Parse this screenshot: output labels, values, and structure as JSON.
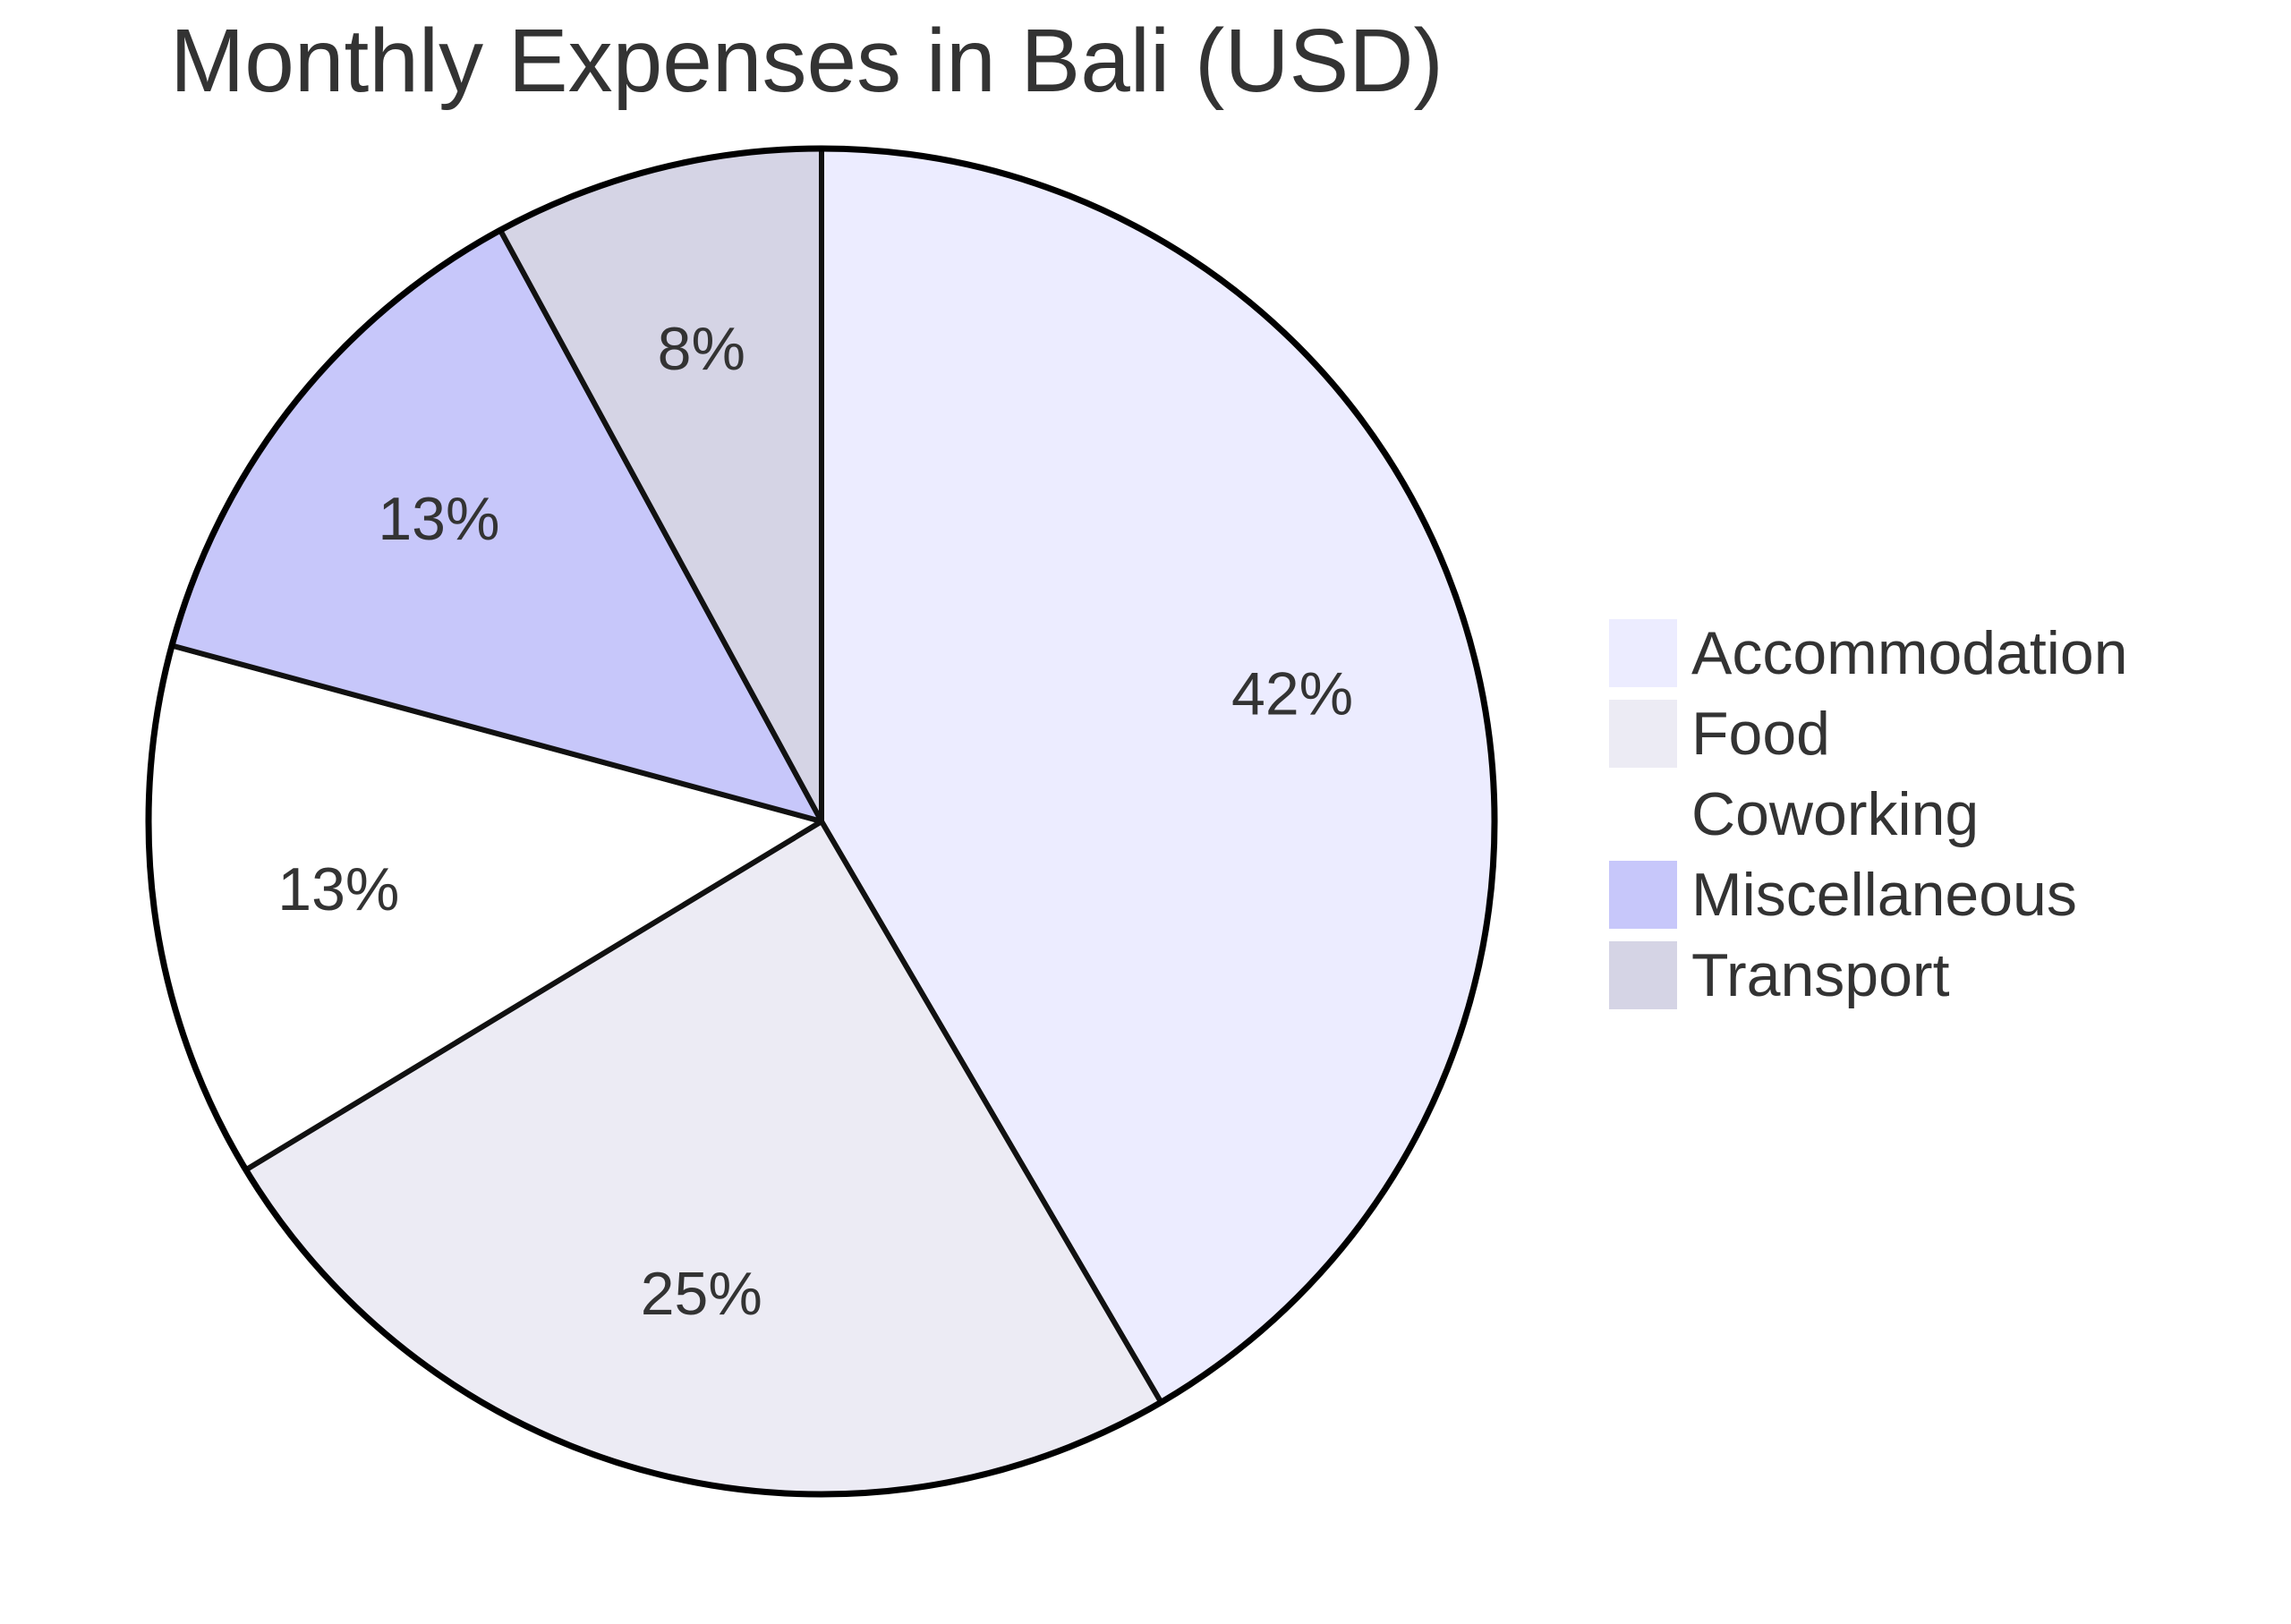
{
  "chart_data": {
    "type": "pie",
    "title": "Monthly Expenses in Bali (USD)",
    "start_angle_deg": 0,
    "direction": "clockwise",
    "legend_position": "right",
    "slices": [
      {
        "name": "Accommodation",
        "percent": 42,
        "label": "42%",
        "color": "#ECECFF"
      },
      {
        "name": "Food",
        "percent": 25,
        "label": "25%",
        "color": "#ECEBF4"
      },
      {
        "name": "Coworking",
        "percent": 13,
        "label": "13%",
        "color": "#FFFFFF"
      },
      {
        "name": "Miscellaneous",
        "percent": 13,
        "label": "13%",
        "color": "#C7C7FA"
      },
      {
        "name": "Transport",
        "percent": 8,
        "label": "8%",
        "color": "#D5D4E5"
      }
    ]
  }
}
